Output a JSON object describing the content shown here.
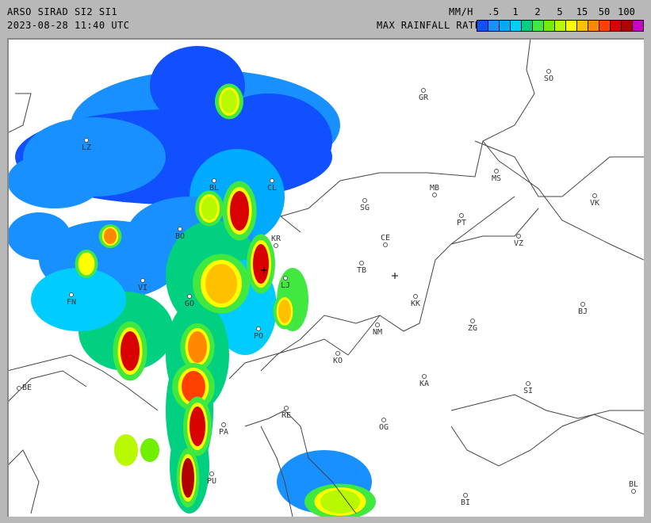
{
  "header": {
    "title": "ARSO SIRAD SI2 SI1",
    "timestamp": "2023-08-28 11:40 UTC"
  },
  "legend": {
    "unit": "MM/H",
    "label": "MAX RAINFALL RATE",
    "ticks": [
      ".5",
      "1",
      "2",
      "5",
      "15",
      "50",
      "100"
    ],
    "colors": [
      "#1050ff",
      "#1890ff",
      "#00aaff",
      "#00ccff",
      "#00d080",
      "#40e840",
      "#70f000",
      "#b8f800",
      "#ffff00",
      "#ffc000",
      "#ff8800",
      "#ff4000",
      "#d80000",
      "#b00000",
      "#c800c8"
    ]
  },
  "map": {
    "cities": [
      "GR",
      "SO",
      "LZ",
      "BL",
      "CL",
      "MB",
      "SG",
      "MS",
      "VK",
      "PT",
      "VZ",
      "BO",
      "KR",
      "CE",
      "TB",
      "VI",
      "LJ",
      "KK",
      "FN",
      "GO",
      "BJ",
      "ZG",
      "NM",
      "PO",
      "KO",
      "KA",
      "SI",
      "BE",
      "RE",
      "OG",
      "PA",
      "PU",
      "BI",
      "BL"
    ],
    "markers": [
      "radar-site-cross",
      "center-cross"
    ]
  }
}
